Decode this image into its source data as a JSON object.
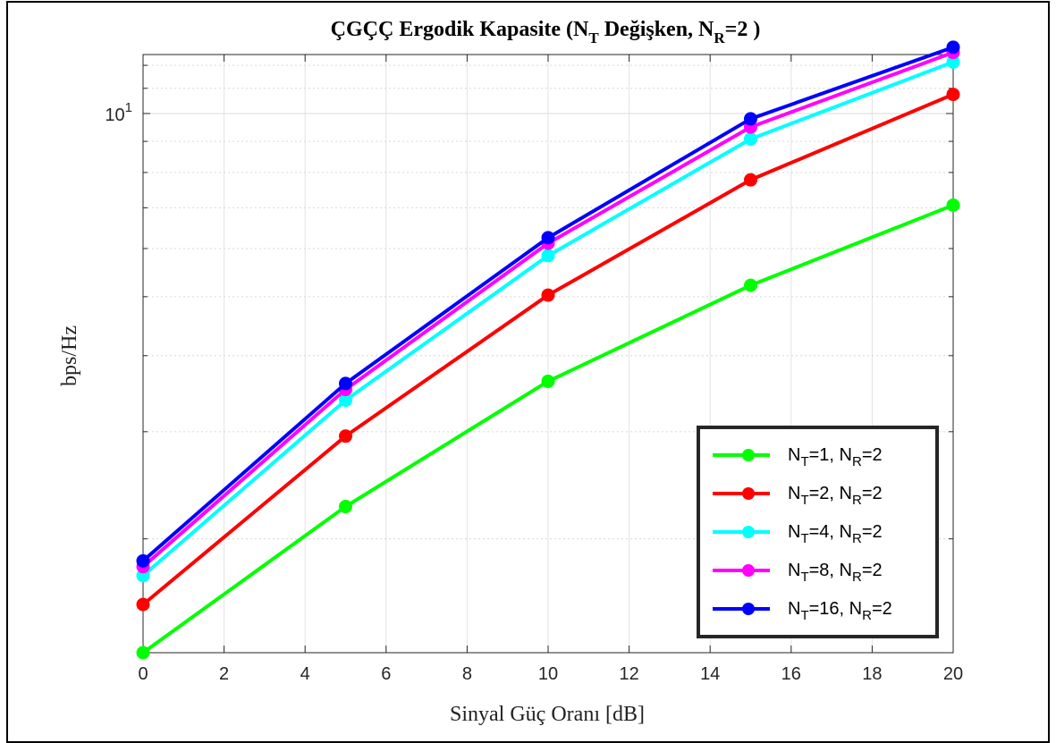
{
  "chart_data": {
    "type": "line",
    "title": {
      "main": "ÇGÇÇ Ergodik Kapasite (N",
      "sub1": "T",
      "mid": " Değişken, N",
      "sub2": "R",
      "end": "=2 )"
    },
    "xlabel": "Sinyal Güç Oranı [dB]",
    "ylabel": "bps/Hz",
    "xlim": [
      0,
      20
    ],
    "ylim": [
      1.3,
      12.5
    ],
    "yscale": "log",
    "grid": true,
    "legend_position": "bottom-right",
    "x_ticks": [
      0,
      2,
      4,
      6,
      8,
      10,
      12,
      14,
      16,
      18,
      20
    ],
    "y_tick_label": {
      "base": "10",
      "exp": "1",
      "value": 10
    },
    "x": [
      0,
      5,
      10,
      15,
      20
    ],
    "series": [
      {
        "name": "N_T=1, N_R=2",
        "nt": "1",
        "nr": "2",
        "color": "#00ff00",
        "values": [
          1.3,
          2.26,
          3.63,
          5.22,
          7.07
        ]
      },
      {
        "name": "N_T=2, N_R=2",
        "nt": "2",
        "nr": "2",
        "color": "#ff0000",
        "values": [
          1.56,
          2.95,
          5.03,
          7.78,
          10.75
        ]
      },
      {
        "name": "N_T=4, N_R=2",
        "nt": "4",
        "nr": "2",
        "color": "#00ffff",
        "values": [
          1.74,
          3.38,
          5.84,
          9.08,
          12.15
        ]
      },
      {
        "name": "N_T=8, N_R=2",
        "nt": "8",
        "nr": "2",
        "color": "#ff00ff",
        "values": [
          1.8,
          3.52,
          6.12,
          9.5,
          12.6
        ]
      },
      {
        "name": "N_T=16, N_R=2",
        "nt": "16",
        "nr": "2",
        "color": "#0000ff",
        "values": [
          1.84,
          3.6,
          6.25,
          9.8,
          12.85
        ]
      }
    ]
  }
}
